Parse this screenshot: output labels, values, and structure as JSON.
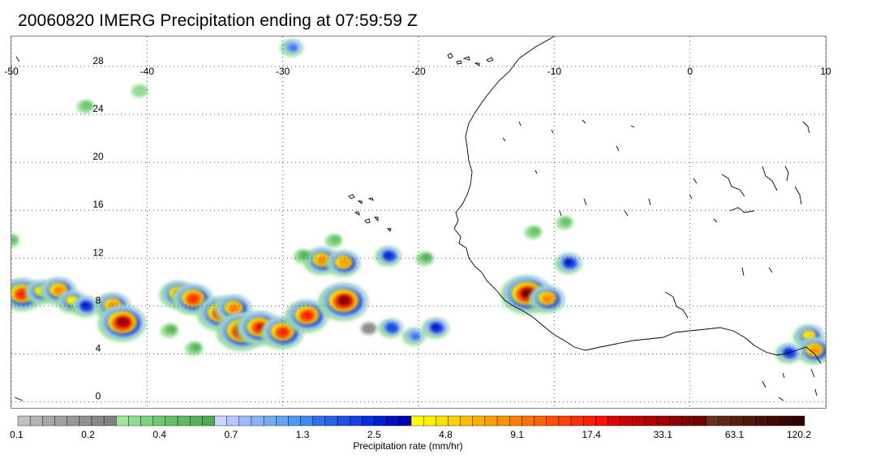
{
  "title": "20060820 IMERG Precipitation ending at 07:59:59 Z",
  "map": {
    "lon_range": [
      -50,
      10
    ],
    "lat_range": [
      -0.5,
      30.5
    ],
    "lon_ticks": [
      "-50",
      "-40",
      "-30",
      "-20",
      "-10",
      "0",
      "10"
    ],
    "lat_ticks": [
      "28",
      "24",
      "20",
      "16",
      "12",
      "8",
      "4",
      "0"
    ],
    "gridlines": "dotted"
  },
  "colorbar": {
    "title": "Precipitation rate (mm/hr)",
    "labels": [
      "0.1",
      "0.2",
      "0.4",
      "0.7",
      "1.3",
      "2.5",
      "4.8",
      "9.1",
      "17.4",
      "33.1",
      "63.1",
      "120.2"
    ],
    "colors": [
      "#c0c0c0",
      "#b4b4b4",
      "#a8a8a8",
      "#a0a0a0",
      "#989898",
      "#8f8f8f",
      "#888888",
      "#808080",
      "#a0e6a0",
      "#90dc90",
      "#80d080",
      "#70c870",
      "#68c068",
      "#60b860",
      "#58b058",
      "#50a850",
      "#c8d8ff",
      "#b4c8ff",
      "#a0b8ff",
      "#8cb4f8",
      "#78acf0",
      "#64a4f0",
      "#5098f0",
      "#3c8cf0",
      "#3070f0",
      "#2860e8",
      "#2050e0",
      "#1840e0",
      "#0030e0",
      "#0020d0",
      "#0010c0",
      "#0000b0",
      "#ffff00",
      "#fff000",
      "#ffe000",
      "#ffd000",
      "#ffc000",
      "#ffb000",
      "#ffa000",
      "#ff9000",
      "#ff8000",
      "#ff7000",
      "#ff6000",
      "#ff5000",
      "#ff4000",
      "#ff3000",
      "#ff2000",
      "#ff1000",
      "#e00000",
      "#d00000",
      "#c00000",
      "#b00000",
      "#a00000",
      "#900000",
      "#800000",
      "#700000",
      "#683020",
      "#602818",
      "#582010",
      "#501808",
      "#481008",
      "#400800",
      "#380800",
      "#300000"
    ]
  },
  "precip_cells": [
    {
      "lon": -49.2,
      "lat": 9.0,
      "rate": 20
    },
    {
      "lon": -47.8,
      "lat": 9.2,
      "rate": 5
    },
    {
      "lon": -46.5,
      "lat": 9.3,
      "rate": 9
    },
    {
      "lon": -45.5,
      "lat": 8.4,
      "rate": 4
    },
    {
      "lon": -44.5,
      "lat": 8.0,
      "rate": 3
    },
    {
      "lon": -42.5,
      "lat": 8.0,
      "rate": 9
    },
    {
      "lon": -41.8,
      "lat": 6.6,
      "rate": 33
    },
    {
      "lon": -37.7,
      "lat": 9.0,
      "rate": 9
    },
    {
      "lon": -36.6,
      "lat": 8.6,
      "rate": 15
    },
    {
      "lon": -34.6,
      "lat": 7.4,
      "rate": 25
    },
    {
      "lon": -33.6,
      "lat": 7.8,
      "rate": 10
    },
    {
      "lon": -33.0,
      "lat": 5.9,
      "rate": 40
    },
    {
      "lon": -31.7,
      "lat": 6.2,
      "rate": 25
    },
    {
      "lon": -30.0,
      "lat": 5.8,
      "rate": 18
    },
    {
      "lon": -28.2,
      "lat": 7.2,
      "rate": 20
    },
    {
      "lon": -25.5,
      "lat": 8.4,
      "rate": 40
    },
    {
      "lon": -27.1,
      "lat": 11.8,
      "rate": 9
    },
    {
      "lon": -25.5,
      "lat": 11.6,
      "rate": 7
    },
    {
      "lon": -22.2,
      "lat": 12.2,
      "rate": 2.5
    },
    {
      "lon": -19.5,
      "lat": 12.0,
      "rate": 0.5
    },
    {
      "lon": -20.3,
      "lat": 5.5,
      "rate": 1.5
    },
    {
      "lon": -12.0,
      "lat": 9.0,
      "rate": 45
    },
    {
      "lon": -10.5,
      "lat": 8.6,
      "rate": 9
    },
    {
      "lon": -44.5,
      "lat": 24.7,
      "rate": 0.4
    },
    {
      "lon": -40.5,
      "lat": 26.0,
      "rate": 0.3
    },
    {
      "lon": -50.0,
      "lat": 13.5,
      "rate": 0.4
    },
    {
      "lon": -8.9,
      "lat": 11.6,
      "rate": 3
    },
    {
      "lon": 8.8,
      "lat": 5.5,
      "rate": 5
    },
    {
      "lon": 9.2,
      "lat": 4.3,
      "rate": 8
    },
    {
      "lon": 7.3,
      "lat": 4.1,
      "rate": 2.5
    },
    {
      "lon": -9.2,
      "lat": 15.0,
      "rate": 0.4
    },
    {
      "lon": -11.5,
      "lat": 14.2,
      "rate": 0.4
    },
    {
      "lon": -26.2,
      "lat": 13.5,
      "rate": 0.4
    },
    {
      "lon": -28.5,
      "lat": 12.2,
      "rate": 0.5
    },
    {
      "lon": -38.3,
      "lat": 6.0,
      "rate": 0.5
    },
    {
      "lon": -36.5,
      "lat": 4.5,
      "rate": 0.5
    },
    {
      "lon": -22.0,
      "lat": 6.2,
      "rate": 2
    },
    {
      "lon": -23.6,
      "lat": 6.2,
      "rate": 0.2
    },
    {
      "lon": -18.7,
      "lat": 6.2,
      "rate": 3
    },
    {
      "lon": -29.3,
      "lat": 29.6,
      "rate": 1.5
    }
  ]
}
